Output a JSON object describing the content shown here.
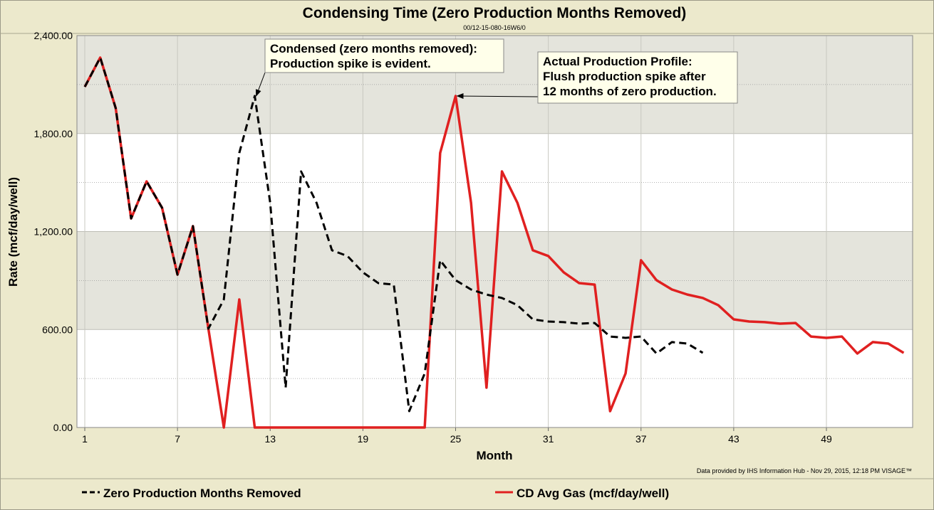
{
  "chart_data": {
    "type": "line",
    "title": "Condensing Time (Zero Production Months Removed)",
    "subtitle": "00/12-15-080-16W6/0",
    "xlabel": "Month",
    "ylabel": "Rate (mcf/day/well)",
    "xlim": [
      0.5,
      54.5
    ],
    "ylim": [
      0,
      2400
    ],
    "x_ticks": [
      1,
      7,
      13,
      19,
      25,
      31,
      37,
      43,
      49
    ],
    "y_ticks": [
      "0.00",
      "600.00",
      "1,200.00",
      "1,800.00",
      "2,400.00"
    ],
    "grid": true,
    "legend_position": "bottom",
    "series": [
      {
        "name": "Zero Production Months Removed",
        "color": "#000000",
        "style": "dashed",
        "x": [
          1,
          2,
          3,
          4,
          5,
          6,
          7,
          8,
          9,
          10,
          11,
          12,
          13,
          14,
          15,
          16,
          17,
          18,
          19,
          20,
          21,
          22,
          23,
          24,
          25,
          26,
          27,
          28,
          29,
          30,
          31,
          32,
          33,
          34,
          35,
          36,
          37,
          38,
          39,
          40,
          41
        ],
        "values": [
          2086,
          2265,
          1956,
          1280,
          1507,
          1346,
          936,
          1233,
          605,
          784,
          1681,
          2030,
          1376,
          244,
          1568,
          1376,
          1085,
          1050,
          950,
          884,
          875,
          100,
          331,
          1024,
          902,
          845,
          814,
          793,
          749,
          662,
          649,
          645,
          636,
          640,
          557,
          549,
          557,
          453,
          523,
          514,
          457
        ]
      },
      {
        "name": "CD Avg Gas (mcf/day/well)",
        "color": "#e02020",
        "style": "solid",
        "x": [
          1,
          2,
          3,
          4,
          5,
          6,
          7,
          8,
          9,
          10,
          11,
          12,
          13,
          14,
          15,
          16,
          17,
          18,
          19,
          20,
          21,
          22,
          23,
          24,
          25,
          26,
          27,
          28,
          29,
          30,
          31,
          32,
          33,
          34,
          35,
          36,
          37,
          38,
          39,
          40,
          41,
          42,
          43,
          44,
          45,
          46,
          47,
          48,
          49,
          50,
          51,
          52,
          53,
          54
        ],
        "values": [
          2086,
          2265,
          1956,
          1280,
          1507,
          1346,
          936,
          1233,
          605,
          0,
          784,
          0,
          0,
          0,
          0,
          0,
          0,
          0,
          0,
          0,
          0,
          0,
          0,
          1681,
          2030,
          1376,
          244,
          1568,
          1376,
          1085,
          1050,
          950,
          884,
          875,
          100,
          331,
          1024,
          902,
          845,
          814,
          793,
          749,
          662,
          649,
          645,
          636,
          640,
          557,
          549,
          557,
          453,
          523,
          514,
          457
        ]
      }
    ],
    "annotations": [
      {
        "lines": [
          "Condensed (zero months removed):",
          "Production spike is evident."
        ],
        "points_to": {
          "series": 0,
          "x": 12
        }
      },
      {
        "lines": [
          "Actual Production Profile:",
          "Flush production spike after",
          "12 months of zero production."
        ],
        "points_to": {
          "series": 1,
          "x": 25
        }
      }
    ],
    "credit": "Data provided by IHS Information Hub - Nov 29, 2015, 12:18 PM  VISAGE™"
  }
}
